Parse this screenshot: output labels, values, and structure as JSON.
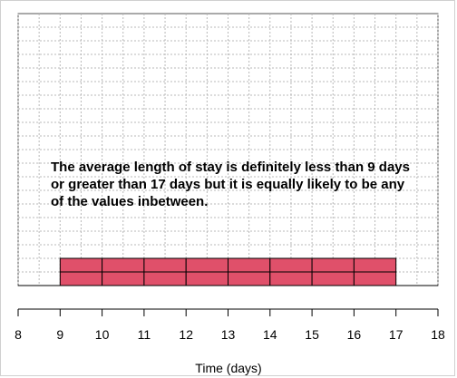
{
  "chart_data": {
    "type": "bar",
    "title": "",
    "xlabel": "Time (days)",
    "ylabel": "",
    "xlim": [
      8,
      18
    ],
    "xticks": [
      8,
      9,
      10,
      11,
      12,
      13,
      14,
      15,
      16,
      17,
      18
    ],
    "grid": true,
    "bars": [
      {
        "x_start": 9,
        "x_end": 10,
        "stack": 2
      },
      {
        "x_start": 10,
        "x_end": 11,
        "stack": 2
      },
      {
        "x_start": 11,
        "x_end": 12,
        "stack": 2
      },
      {
        "x_start": 12,
        "x_end": 13,
        "stack": 2
      },
      {
        "x_start": 13,
        "x_end": 14,
        "stack": 2
      },
      {
        "x_start": 14,
        "x_end": 15,
        "stack": 2
      },
      {
        "x_start": 15,
        "x_end": 16,
        "stack": 2
      },
      {
        "x_start": 16,
        "x_end": 17,
        "stack": 2
      }
    ],
    "bar_color": "#e0506a",
    "annotation": "The average length of stay is definitely less than 9 days or greater than 17 days but it is equally likely to be any of the values inbetween."
  }
}
